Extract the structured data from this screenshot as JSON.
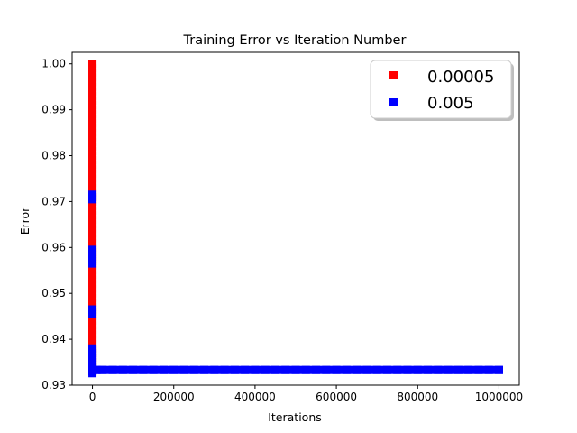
{
  "chart_data": {
    "type": "scatter",
    "title": "Training Error vs Iteration Number",
    "xlabel": "Iterations",
    "ylabel": "Error",
    "xlim": [
      -50000,
      1050000
    ],
    "ylim": [
      0.93,
      1.0025
    ],
    "xticks": [
      0,
      200000,
      400000,
      600000,
      800000,
      1000000
    ],
    "xtick_labels": [
      "0",
      "200000",
      "400000",
      "600000",
      "800000",
      "1000000"
    ],
    "yticks": [
      0.93,
      0.94,
      0.95,
      0.96,
      0.97,
      0.98,
      0.99,
      1.0
    ],
    "ytick_labels": [
      "0.93",
      "0.94",
      "0.95",
      "0.96",
      "0.97",
      "0.98",
      "0.99",
      "1.00"
    ],
    "grid": false,
    "legend_position": "top-right",
    "series": [
      {
        "name": "0.00005",
        "color": "#ff0000",
        "marker": "square",
        "x": [
          0,
          0,
          0,
          0,
          0,
          0,
          0,
          0,
          0,
          0,
          0,
          0,
          0,
          0,
          0,
          0,
          0,
          0,
          0,
          0,
          0,
          0,
          0,
          0,
          0,
          0,
          0,
          0,
          0,
          0,
          0,
          0,
          0,
          0,
          0,
          0,
          0,
          0,
          0,
          0,
          0,
          0,
          0,
          0,
          0,
          0,
          0,
          0,
          0,
          0,
          0,
          0,
          0,
          0,
          0,
          0,
          0,
          0,
          0,
          0,
          0,
          0,
          0,
          0,
          0,
          0,
          0,
          0,
          0,
          0,
          0
        ],
        "y": [
          1.0,
          0.999,
          0.998,
          0.997,
          0.996,
          0.995,
          0.994,
          0.993,
          0.992,
          0.991,
          0.99,
          0.989,
          0.988,
          0.987,
          0.986,
          0.985,
          0.984,
          0.983,
          0.982,
          0.981,
          0.98,
          0.979,
          0.978,
          0.977,
          0.976,
          0.975,
          0.974,
          0.973,
          0.972,
          0.971,
          0.97,
          0.969,
          0.968,
          0.967,
          0.966,
          0.965,
          0.964,
          0.963,
          0.962,
          0.961,
          0.96,
          0.959,
          0.958,
          0.957,
          0.956,
          0.955,
          0.954,
          0.953,
          0.952,
          0.951,
          0.95,
          0.949,
          0.948,
          0.947,
          0.946,
          0.945,
          0.944,
          0.943,
          0.942,
          0.941,
          0.94,
          0.939,
          0.938,
          0.937,
          0.936,
          0.935,
          0.934,
          0.9335,
          0.9333,
          0.9332,
          0.9331
        ]
      },
      {
        "name": "0.005",
        "color": "#0000ff",
        "marker": "square",
        "x": [
          0,
          0,
          0,
          0,
          0,
          0,
          0,
          0,
          0,
          0,
          0,
          0,
          0,
          0,
          0,
          0,
          0,
          0,
          0,
          0,
          0,
          0,
          10000,
          25000,
          50000,
          75000,
          100000,
          125000,
          150000,
          175000,
          200000,
          225000,
          250000,
          275000,
          300000,
          325000,
          350000,
          375000,
          400000,
          425000,
          450000,
          475000,
          500000,
          525000,
          550000,
          575000,
          600000,
          625000,
          650000,
          675000,
          700000,
          725000,
          750000,
          775000,
          800000,
          825000,
          850000,
          875000,
          900000,
          925000,
          950000,
          975000,
          1000000
        ],
        "y": [
          0.9715,
          0.971,
          0.9705,
          0.9595,
          0.9585,
          0.9575,
          0.9565,
          0.9465,
          0.9455,
          0.938,
          0.9375,
          0.937,
          0.9365,
          0.936,
          0.9355,
          0.935,
          0.9345,
          0.934,
          0.9335,
          0.933,
          0.9326,
          0.9333,
          0.9333,
          0.9333,
          0.9333,
          0.9333,
          0.9333,
          0.9333,
          0.9333,
          0.9333,
          0.9333,
          0.9333,
          0.9333,
          0.9333,
          0.9333,
          0.9333,
          0.9333,
          0.9333,
          0.9333,
          0.9333,
          0.9333,
          0.9333,
          0.9333,
          0.9333,
          0.9333,
          0.9333,
          0.9333,
          0.9333,
          0.9333,
          0.9333,
          0.9333,
          0.9333,
          0.9333,
          0.9333,
          0.9333,
          0.9333,
          0.9333,
          0.9333,
          0.9333,
          0.9333,
          0.9333,
          0.9333,
          0.9333
        ]
      }
    ]
  }
}
